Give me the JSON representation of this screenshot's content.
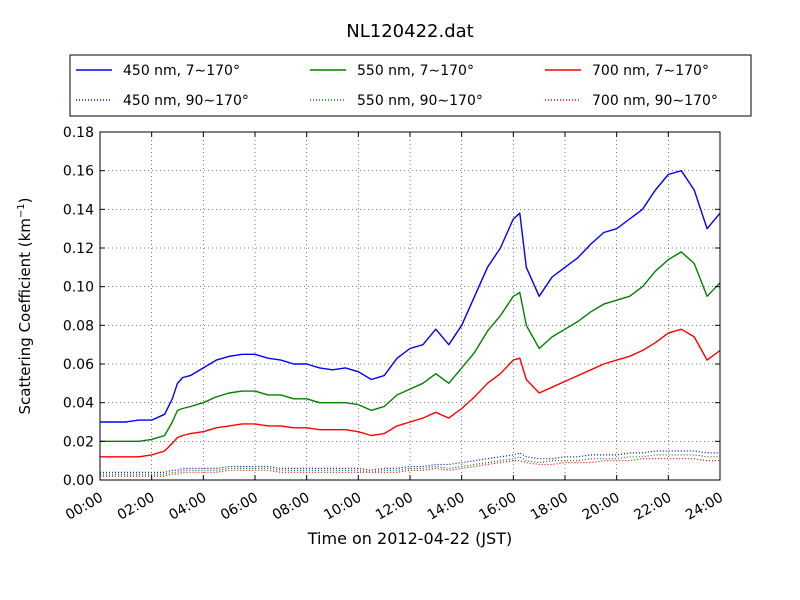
{
  "figure": {
    "title": "NL120422.dat",
    "xlabel": "Time on 2012-04-22 (JST)",
    "ylabel_main": "Scattering Coefficient (km",
    "ylabel_sup": "−1",
    "ylabel_close": ")"
  },
  "chart_data": {
    "type": "line",
    "title": "NL120422.dat",
    "xlabel": "Time on 2012-04-22 (JST)",
    "ylabel": "Scattering Coefficient (km^-1)",
    "x_unit": "hours",
    "xlim": [
      0,
      24
    ],
    "ylim": [
      0,
      0.18
    ],
    "x_ticks": [
      0,
      2,
      4,
      6,
      8,
      10,
      12,
      14,
      16,
      18,
      20,
      22,
      24
    ],
    "x_tick_labels": [
      "00:00",
      "02:00",
      "04:00",
      "06:00",
      "08:00",
      "10:00",
      "12:00",
      "14:00",
      "16:00",
      "18:00",
      "20:00",
      "22:00",
      "24:00"
    ],
    "y_ticks": [
      0,
      0.02,
      0.04,
      0.06,
      0.08,
      0.1,
      0.12,
      0.14,
      0.16,
      0.18
    ],
    "y_tick_labels": [
      "0.00",
      "0.02",
      "0.04",
      "0.06",
      "0.08",
      "0.10",
      "0.12",
      "0.14",
      "0.16",
      "0.18"
    ],
    "grid": true,
    "legend_position": "top",
    "x": [
      0,
      0.5,
      1,
      1.5,
      2,
      2.5,
      2.8,
      3,
      3.2,
      3.5,
      4,
      4.5,
      5,
      5.5,
      6,
      6.5,
      7,
      7.5,
      8,
      8.5,
      9,
      9.5,
      10,
      10.5,
      11,
      11.5,
      12,
      12.5,
      13,
      13.5,
      14,
      14.5,
      15,
      15.5,
      16,
      16.25,
      16.5,
      17,
      17.5,
      18,
      18.5,
      19,
      19.5,
      20,
      20.5,
      21,
      21.5,
      22,
      22.5,
      23,
      23.5,
      24
    ],
    "series": [
      {
        "name": "450 nm, 7∼170°",
        "color": "#0000ff",
        "style": "solid",
        "values": [
          0.03,
          0.03,
          0.03,
          0.031,
          0.031,
          0.034,
          0.042,
          0.05,
          0.053,
          0.054,
          0.058,
          0.062,
          0.064,
          0.065,
          0.065,
          0.063,
          0.062,
          0.06,
          0.06,
          0.058,
          0.057,
          0.058,
          0.056,
          0.052,
          0.054,
          0.063,
          0.068,
          0.07,
          0.078,
          0.07,
          0.08,
          0.095,
          0.11,
          0.12,
          0.135,
          0.138,
          0.11,
          0.095,
          0.105,
          0.11,
          0.115,
          0.122,
          0.128,
          0.13,
          0.135,
          0.14,
          0.15,
          0.158,
          0.16,
          0.15,
          0.13,
          0.138
        ]
      },
      {
        "name": "550 nm, 7∼170°",
        "color": "#008000",
        "style": "solid",
        "values": [
          0.02,
          0.02,
          0.02,
          0.02,
          0.021,
          0.023,
          0.03,
          0.036,
          0.037,
          0.038,
          0.04,
          0.043,
          0.045,
          0.046,
          0.046,
          0.044,
          0.044,
          0.042,
          0.042,
          0.04,
          0.04,
          0.04,
          0.039,
          0.036,
          0.038,
          0.044,
          0.047,
          0.05,
          0.055,
          0.05,
          0.058,
          0.066,
          0.077,
          0.085,
          0.095,
          0.097,
          0.08,
          0.068,
          0.074,
          0.078,
          0.082,
          0.087,
          0.091,
          0.093,
          0.095,
          0.1,
          0.108,
          0.114,
          0.118,
          0.112,
          0.095,
          0.102
        ]
      },
      {
        "name": "700 nm, 7∼170°",
        "color": "#ff0000",
        "style": "solid",
        "values": [
          0.012,
          0.012,
          0.012,
          0.012,
          0.013,
          0.015,
          0.019,
          0.022,
          0.023,
          0.024,
          0.025,
          0.027,
          0.028,
          0.029,
          0.029,
          0.028,
          0.028,
          0.027,
          0.027,
          0.026,
          0.026,
          0.026,
          0.025,
          0.023,
          0.024,
          0.028,
          0.03,
          0.032,
          0.035,
          0.032,
          0.037,
          0.043,
          0.05,
          0.055,
          0.062,
          0.063,
          0.052,
          0.045,
          0.048,
          0.051,
          0.054,
          0.057,
          0.06,
          0.062,
          0.064,
          0.067,
          0.071,
          0.076,
          0.078,
          0.074,
          0.062,
          0.067
        ]
      },
      {
        "name": "450 nm, 90∼170°",
        "color": "#0000ff",
        "style": "dotted",
        "values": [
          0.004,
          0.004,
          0.004,
          0.004,
          0.004,
          0.004,
          0.005,
          0.005,
          0.006,
          0.006,
          0.006,
          0.006,
          0.007,
          0.007,
          0.007,
          0.007,
          0.006,
          0.006,
          0.006,
          0.006,
          0.006,
          0.006,
          0.006,
          0.005,
          0.006,
          0.006,
          0.007,
          0.007,
          0.008,
          0.008,
          0.009,
          0.01,
          0.011,
          0.012,
          0.013,
          0.014,
          0.012,
          0.011,
          0.011,
          0.012,
          0.012,
          0.013,
          0.013,
          0.013,
          0.014,
          0.014,
          0.015,
          0.015,
          0.015,
          0.015,
          0.014,
          0.014
        ]
      },
      {
        "name": "550 nm, 90∼170°",
        "color": "#008000",
        "style": "dotted",
        "values": [
          0.003,
          0.003,
          0.003,
          0.003,
          0.003,
          0.003,
          0.004,
          0.004,
          0.005,
          0.005,
          0.005,
          0.005,
          0.006,
          0.006,
          0.006,
          0.006,
          0.005,
          0.005,
          0.005,
          0.005,
          0.005,
          0.005,
          0.005,
          0.004,
          0.005,
          0.005,
          0.006,
          0.006,
          0.007,
          0.006,
          0.007,
          0.008,
          0.009,
          0.01,
          0.011,
          0.012,
          0.01,
          0.009,
          0.01,
          0.01,
          0.01,
          0.011,
          0.011,
          0.011,
          0.012,
          0.012,
          0.013,
          0.013,
          0.013,
          0.013,
          0.012,
          0.012
        ]
      },
      {
        "name": "700 nm, 90∼170°",
        "color": "#ff0000",
        "style": "dotted",
        "values": [
          0.002,
          0.002,
          0.002,
          0.002,
          0.002,
          0.002,
          0.003,
          0.003,
          0.004,
          0.004,
          0.004,
          0.004,
          0.005,
          0.005,
          0.005,
          0.005,
          0.004,
          0.004,
          0.004,
          0.004,
          0.004,
          0.004,
          0.004,
          0.004,
          0.004,
          0.004,
          0.005,
          0.005,
          0.006,
          0.005,
          0.006,
          0.007,
          0.008,
          0.009,
          0.01,
          0.01,
          0.009,
          0.008,
          0.008,
          0.009,
          0.009,
          0.009,
          0.01,
          0.01,
          0.01,
          0.011,
          0.011,
          0.011,
          0.011,
          0.011,
          0.01,
          0.01
        ]
      }
    ]
  }
}
